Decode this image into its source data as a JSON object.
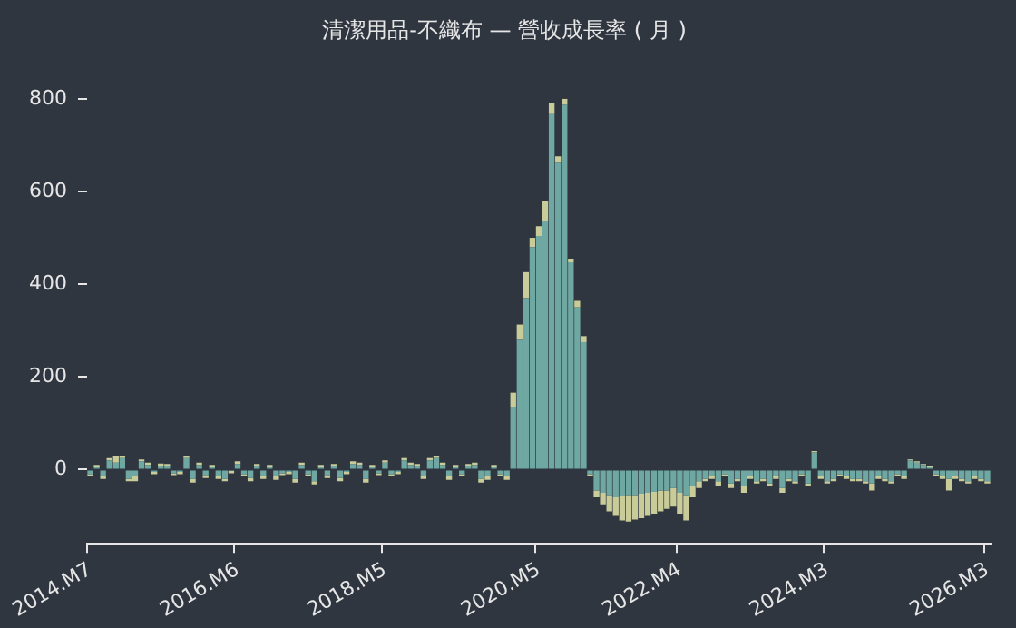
{
  "chart_data": {
    "type": "bar",
    "title": "清潔用品-不織布 — 營收成長率 ( 月 )",
    "stacked": true,
    "categories": [
      "2014.M7",
      null,
      null,
      null,
      null,
      null,
      null,
      null,
      null,
      null,
      null,
      null,
      null,
      null,
      null,
      null,
      null,
      null,
      null,
      null,
      null,
      null,
      null,
      "2016.M6",
      null,
      null,
      null,
      null,
      null,
      null,
      null,
      null,
      null,
      null,
      null,
      null,
      null,
      null,
      null,
      null,
      null,
      null,
      null,
      null,
      null,
      null,
      "2018.M5",
      null,
      null,
      null,
      null,
      null,
      null,
      null,
      null,
      null,
      null,
      null,
      null,
      null,
      null,
      null,
      null,
      null,
      null,
      null,
      null,
      null,
      null,
      null,
      "2020.M5",
      null,
      null,
      null,
      null,
      null,
      null,
      null,
      null,
      null,
      null,
      null,
      null,
      null,
      null,
      null,
      null,
      null,
      null,
      null,
      null,
      null,
      "2022.M4",
      null,
      null,
      null,
      null,
      null,
      null,
      null,
      null,
      null,
      null,
      null,
      null,
      null,
      null,
      null,
      null,
      null,
      null,
      null,
      null,
      null,
      null,
      "2024.M3",
      null,
      null,
      null,
      null,
      null,
      null,
      null,
      null,
      null,
      null,
      null,
      null,
      null,
      null,
      null,
      null,
      null,
      null,
      null,
      null,
      null,
      null,
      null,
      null,
      "2026.M3"
    ],
    "series": [
      {
        "color": "#6fa8a2",
        "values": [
          -10,
          5,
          -15,
          20,
          15,
          25,
          -20,
          -15,
          18,
          10,
          -5,
          8,
          8,
          -8,
          -5,
          25,
          -20,
          10,
          -12,
          5,
          -15,
          -20,
          -3,
          12,
          -10,
          -18,
          8,
          -15,
          5,
          -15,
          -8,
          -5,
          -20,
          10,
          -10,
          -25,
          5,
          -12,
          8,
          -18,
          -5,
          12,
          10,
          -20,
          5,
          -8,
          15,
          -10,
          -5,
          20,
          10,
          8,
          -15,
          20,
          25,
          10,
          -15,
          5,
          -10,
          8,
          10,
          -20,
          -15,
          5,
          -10,
          -15,
          135,
          280,
          370,
          480,
          504,
          537,
          767,
          662,
          787,
          447,
          350,
          275,
          -10,
          -45,
          -50,
          -55,
          -60,
          -58,
          -55,
          -55,
          -52,
          -50,
          -48,
          -45,
          -45,
          -40,
          -50,
          -55,
          -35,
          -25,
          -20,
          -15,
          -25,
          -10,
          -30,
          -20,
          -35,
          -15,
          -25,
          -20,
          -30,
          -15,
          -40,
          -20,
          -25,
          -10,
          -30,
          37,
          -15,
          -25,
          -20,
          -10,
          -15,
          -20,
          -20,
          -25,
          -30,
          -15,
          -20,
          -25,
          -10,
          -15,
          20,
          15,
          10,
          5,
          -10,
          -15,
          -20,
          -15,
          -20,
          -25,
          -15,
          -20,
          -25
        ]
      },
      {
        "color": "#c9cc98",
        "values": [
          -5,
          5,
          -5,
          5,
          15,
          5,
          -5,
          -10,
          4,
          5,
          -5,
          5,
          4,
          -4,
          -5,
          5,
          -8,
          5,
          -6,
          5,
          -5,
          -5,
          -5,
          6,
          -5,
          -7,
          4,
          -5,
          5,
          -7,
          -4,
          -5,
          -8,
          5,
          -5,
          -7,
          5,
          -6,
          4,
          -7,
          -5,
          6,
          5,
          -8,
          5,
          -4,
          5,
          -5,
          -5,
          5,
          5,
          4,
          -5,
          5,
          5,
          5,
          -7,
          5,
          -5,
          4,
          5,
          -8,
          -7,
          5,
          -5,
          -7,
          31,
          33,
          56,
          20,
          21,
          42,
          25,
          14,
          13,
          8,
          14,
          13,
          -5,
          -15,
          -25,
          -35,
          -40,
          -52,
          -57,
          -53,
          -53,
          -50,
          -47,
          -45,
          -40,
          -40,
          -45,
          -55,
          -25,
          -15,
          -5,
          -5,
          -10,
          -5,
          -10,
          -5,
          -15,
          -5,
          -5,
          -5,
          -5,
          -5,
          -10,
          -5,
          -5,
          -5,
          -5,
          3,
          -5,
          -5,
          -5,
          -5,
          -5,
          -5,
          -5,
          -5,
          -15,
          -5,
          -5,
          -5,
          -5,
          -5,
          2,
          3,
          2,
          3,
          -5,
          -5,
          -25,
          -5,
          -5,
          -5,
          -5,
          -5,
          -5
        ]
      }
    ],
    "ylim": [
      -160,
      800
    ],
    "yticks": [
      0,
      200,
      400,
      600,
      800
    ],
    "grid": false,
    "legend": false
  }
}
